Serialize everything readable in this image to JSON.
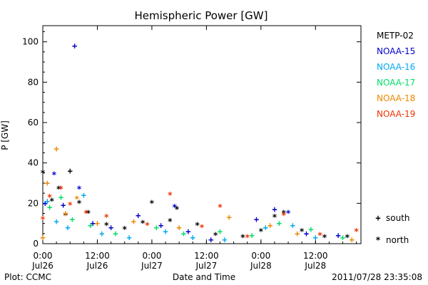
{
  "chart_data": {
    "type": "scatter",
    "title": "Hemispheric Power [GW]",
    "xlabel": "Date and Time",
    "ylabel": "P [GW]",
    "xlim": [
      "2011-07-26 00:00",
      "2011-07-28 22:00"
    ],
    "ylim": [
      0,
      108
    ],
    "y_ticks": [
      0,
      20,
      40,
      60,
      80,
      100
    ],
    "x_ticks": [
      {
        "time": "2011-07-26 00:00",
        "line1": "0:00",
        "line2": "Jul26"
      },
      {
        "time": "2011-07-26 12:00",
        "line1": "12:00",
        "line2": "Jul26"
      },
      {
        "time": "2011-07-27 00:00",
        "line1": "0:00",
        "line2": "Jul27"
      },
      {
        "time": "2011-07-27 12:00",
        "line1": "12:00",
        "line2": "Jul27"
      },
      {
        "time": "2011-07-28 00:00",
        "line1": "0:00",
        "line2": "Jul28"
      },
      {
        "time": "2011-07-28 12:00",
        "line1": "12:00",
        "line2": "Jul28"
      }
    ],
    "marker_legend": [
      {
        "symbol": "+",
        "label": "south"
      },
      {
        "symbol": "*",
        "label": "north"
      }
    ],
    "series": [
      {
        "name": "METP-02",
        "color": "#000000",
        "points": [
          {
            "x": "2011-07-26 00:00",
            "y": 35,
            "m": "north"
          },
          {
            "x": "2011-07-26 02:00",
            "y": 21,
            "m": "north"
          },
          {
            "x": "2011-07-26 03:30",
            "y": 27,
            "m": "north"
          },
          {
            "x": "2011-07-26 05:00",
            "y": 14,
            "m": "north"
          },
          {
            "x": "2011-07-26 06:00",
            "y": 36,
            "m": "south"
          },
          {
            "x": "2011-07-26 08:00",
            "y": 20,
            "m": "north"
          },
          {
            "x": "2011-07-26 10:00",
            "y": 15,
            "m": "north"
          },
          {
            "x": "2011-07-26 14:00",
            "y": 9,
            "m": "north"
          },
          {
            "x": "2011-07-26 18:00",
            "y": 7,
            "m": "north"
          },
          {
            "x": "2011-07-26 22:00",
            "y": 10,
            "m": "north"
          },
          {
            "x": "2011-07-27 00:00",
            "y": 20,
            "m": "north"
          },
          {
            "x": "2011-07-27 04:00",
            "y": 11,
            "m": "north"
          },
          {
            "x": "2011-07-27 05:30",
            "y": 17,
            "m": "north"
          },
          {
            "x": "2011-07-27 10:00",
            "y": 9,
            "m": "north"
          },
          {
            "x": "2011-07-27 14:00",
            "y": 4,
            "m": "north"
          },
          {
            "x": "2011-07-27 20:00",
            "y": 3,
            "m": "north"
          },
          {
            "x": "2011-07-28 00:00",
            "y": 6,
            "m": "north"
          },
          {
            "x": "2011-07-28 03:00",
            "y": 13,
            "m": "north"
          },
          {
            "x": "2011-07-28 05:00",
            "y": 15,
            "m": "north"
          },
          {
            "x": "2011-07-28 09:00",
            "y": 6,
            "m": "north"
          },
          {
            "x": "2011-07-28 14:00",
            "y": 3,
            "m": "north"
          },
          {
            "x": "2011-07-28 19:00",
            "y": 3,
            "m": "north"
          }
        ]
      },
      {
        "name": "NOAA-15",
        "color": "#0000cc",
        "points": [
          {
            "x": "2011-07-26 00:30",
            "y": 20,
            "m": "south"
          },
          {
            "x": "2011-07-26 02:30",
            "y": 34,
            "m": "north"
          },
          {
            "x": "2011-07-26 04:30",
            "y": 19,
            "m": "south"
          },
          {
            "x": "2011-07-26 07:00",
            "y": 98,
            "m": "south"
          },
          {
            "x": "2011-07-26 08:00",
            "y": 27,
            "m": "north"
          },
          {
            "x": "2011-07-26 11:00",
            "y": 10,
            "m": "south"
          },
          {
            "x": "2011-07-26 15:00",
            "y": 8,
            "m": "south"
          },
          {
            "x": "2011-07-26 21:00",
            "y": 14,
            "m": "south"
          },
          {
            "x": "2011-07-27 02:00",
            "y": 9,
            "m": "south"
          },
          {
            "x": "2011-07-27 05:00",
            "y": 18,
            "m": "north"
          },
          {
            "x": "2011-07-27 08:00",
            "y": 6,
            "m": "south"
          },
          {
            "x": "2011-07-27 13:00",
            "y": 2,
            "m": "south"
          },
          {
            "x": "2011-07-27 23:00",
            "y": 12,
            "m": "south"
          },
          {
            "x": "2011-07-28 03:00",
            "y": 17,
            "m": "south"
          },
          {
            "x": "2011-07-28 06:00",
            "y": 15,
            "m": "north"
          },
          {
            "x": "2011-07-28 10:00",
            "y": 5,
            "m": "south"
          },
          {
            "x": "2011-07-28 17:00",
            "y": 4,
            "m": "south"
          }
        ]
      },
      {
        "name": "NOAA-16",
        "color": "#00aaee",
        "points": [
          {
            "x": "2011-07-26 01:00",
            "y": 21,
            "m": "south"
          },
          {
            "x": "2011-07-26 03:00",
            "y": 11,
            "m": "south"
          },
          {
            "x": "2011-07-26 05:30",
            "y": 8,
            "m": "south"
          },
          {
            "x": "2011-07-26 09:00",
            "y": 24,
            "m": "south"
          },
          {
            "x": "2011-07-26 13:00",
            "y": 5,
            "m": "south"
          },
          {
            "x": "2011-07-26 19:00",
            "y": 3,
            "m": "south"
          },
          {
            "x": "2011-07-27 03:00",
            "y": 6,
            "m": "south"
          },
          {
            "x": "2011-07-27 09:00",
            "y": 3,
            "m": "south"
          },
          {
            "x": "2011-07-27 16:00",
            "y": 2,
            "m": "south"
          },
          {
            "x": "2011-07-28 01:00",
            "y": 8,
            "m": "south"
          },
          {
            "x": "2011-07-28 07:00",
            "y": 9,
            "m": "south"
          },
          {
            "x": "2011-07-28 12:00",
            "y": 3,
            "m": "south"
          }
        ]
      },
      {
        "name": "NOAA-17",
        "color": "#00dd66",
        "points": [
          {
            "x": "2011-07-26 01:30",
            "y": 18,
            "m": "south"
          },
          {
            "x": "2011-07-26 04:00",
            "y": 23,
            "m": "south"
          },
          {
            "x": "2011-07-26 06:30",
            "y": 12,
            "m": "south"
          },
          {
            "x": "2011-07-26 10:30",
            "y": 9,
            "m": "south"
          },
          {
            "x": "2011-07-26 16:00",
            "y": 5,
            "m": "south"
          },
          {
            "x": "2011-07-27 01:00",
            "y": 8,
            "m": "south"
          },
          {
            "x": "2011-07-27 07:00",
            "y": 5,
            "m": "south"
          },
          {
            "x": "2011-07-27 15:00",
            "y": 6,
            "m": "south"
          },
          {
            "x": "2011-07-27 22:00",
            "y": 4,
            "m": "south"
          },
          {
            "x": "2011-07-28 04:00",
            "y": 10,
            "m": "south"
          },
          {
            "x": "2011-07-28 11:00",
            "y": 7,
            "m": "south"
          },
          {
            "x": "2011-07-28 18:00",
            "y": 3,
            "m": "south"
          }
        ]
      },
      {
        "name": "NOAA-18",
        "color": "#ee8800",
        "points": [
          {
            "x": "2011-07-26 00:00",
            "y": 3,
            "m": "south"
          },
          {
            "x": "2011-07-26 01:00",
            "y": 30,
            "m": "south"
          },
          {
            "x": "2011-07-26 03:00",
            "y": 47,
            "m": "south"
          },
          {
            "x": "2011-07-26 05:00",
            "y": 15,
            "m": "south"
          },
          {
            "x": "2011-07-26 07:30",
            "y": 22,
            "m": "north"
          },
          {
            "x": "2011-07-26 12:00",
            "y": 10,
            "m": "south"
          },
          {
            "x": "2011-07-26 20:00",
            "y": 11,
            "m": "south"
          },
          {
            "x": "2011-07-27 06:00",
            "y": 8,
            "m": "south"
          },
          {
            "x": "2011-07-27 17:00",
            "y": 13,
            "m": "south"
          },
          {
            "x": "2011-07-28 02:00",
            "y": 9,
            "m": "south"
          },
          {
            "x": "2011-07-28 08:00",
            "y": 5,
            "m": "south"
          },
          {
            "x": "2011-07-28 20:00",
            "y": 2,
            "m": "south"
          }
        ]
      },
      {
        "name": "NOAA-19",
        "color": "#ee3300",
        "points": [
          {
            "x": "2011-07-26 00:00",
            "y": 12,
            "m": "north"
          },
          {
            "x": "2011-07-26 01:30",
            "y": 23,
            "m": "north"
          },
          {
            "x": "2011-07-26 04:00",
            "y": 27,
            "m": "north"
          },
          {
            "x": "2011-07-26 06:00",
            "y": 19,
            "m": "north"
          },
          {
            "x": "2011-07-26 09:30",
            "y": 15,
            "m": "north"
          },
          {
            "x": "2011-07-26 14:00",
            "y": 13,
            "m": "north"
          },
          {
            "x": "2011-07-26 23:00",
            "y": 9,
            "m": "north"
          },
          {
            "x": "2011-07-27 04:00",
            "y": 24,
            "m": "north"
          },
          {
            "x": "2011-07-27 11:00",
            "y": 8,
            "m": "north"
          },
          {
            "x": "2011-07-27 15:00",
            "y": 18,
            "m": "north"
          },
          {
            "x": "2011-07-27 21:00",
            "y": 3,
            "m": "north"
          },
          {
            "x": "2011-07-28 05:00",
            "y": 14,
            "m": "north"
          },
          {
            "x": "2011-07-28 13:00",
            "y": 4,
            "m": "north"
          },
          {
            "x": "2011-07-28 21:00",
            "y": 6,
            "m": "north"
          }
        ]
      }
    ]
  },
  "footer": {
    "left": "Plot: CCMC",
    "right": "2011/07/28 23:35:08"
  }
}
